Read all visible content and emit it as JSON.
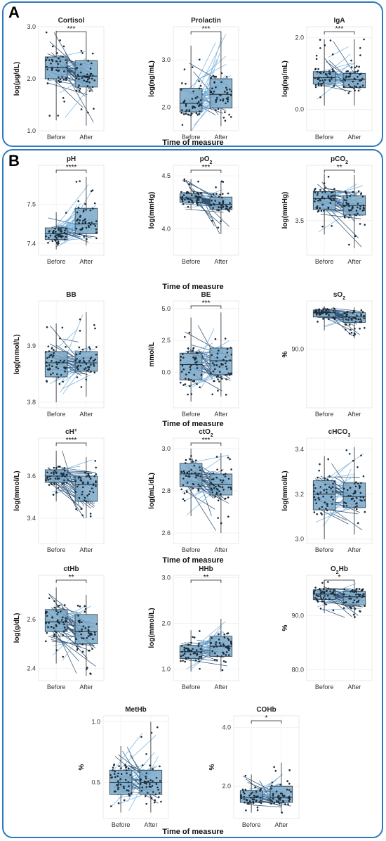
{
  "figure": {
    "panel_a_label": "A",
    "panel_b_label": "B",
    "xlabel": "Time of measure",
    "border_color": "#2f78c0",
    "box_fill": "#7aa8c8",
    "dark_line": "#2b4f70",
    "light_line": "#7ab3de"
  },
  "chart_data": [
    {
      "type": "box",
      "title": "Cortisol",
      "ylabel": "log(µg/dL)",
      "categories": [
        "Before",
        "After"
      ],
      "ylim": [
        1.0,
        3.0
      ],
      "yticks": [
        "1.0",
        "2.0",
        "3.0"
      ],
      "significance": "***",
      "before": {
        "q1": 2.0,
        "median": 2.22,
        "q3": 2.42,
        "min": 1.2,
        "max": 2.92
      },
      "after": {
        "q1": 1.84,
        "median": 2.05,
        "q3": 2.35,
        "min": 1.1,
        "max": 2.85
      }
    },
    {
      "type": "box",
      "title": "Prolactin",
      "ylabel": "log(ng/mL)",
      "categories": [
        "Before",
        "After"
      ],
      "ylim": [
        1.5,
        3.7
      ],
      "yticks": [
        "2.0",
        "3.0"
      ],
      "significance": "***",
      "before": {
        "q1": 1.9,
        "median": 2.08,
        "q3": 2.4,
        "min": 1.5,
        "max": 3.3
      },
      "after": {
        "q1": 1.98,
        "median": 2.27,
        "q3": 2.6,
        "min": 1.6,
        "max": 3.55
      }
    },
    {
      "type": "box",
      "title": "IgA",
      "ylabel": "log(ng/mL)",
      "categories": [
        "Before",
        "After"
      ],
      "ylim": [
        -0.6,
        2.3
      ],
      "yticks": [
        "0.0",
        "2.0"
      ],
      "significance": "***",
      "before": {
        "q1": 0.7,
        "median": 0.88,
        "q3": 1.05,
        "min": 0.1,
        "max": 1.95
      },
      "after": {
        "q1": 0.6,
        "median": 0.83,
        "q3": 1.0,
        "min": 0.1,
        "max": 1.95
      }
    },
    {
      "type": "box",
      "title": "pH",
      "ylabel": "",
      "categories": [
        "Before",
        "After"
      ],
      "ylim": [
        7.37,
        7.6
      ],
      "yticks": [
        "7.4",
        "7.5"
      ],
      "significance": "****",
      "before": {
        "q1": 7.41,
        "median": 7.425,
        "q3": 7.44,
        "min": 7.385,
        "max": 7.48
      },
      "after": {
        "q1": 7.425,
        "median": 7.45,
        "q3": 7.49,
        "min": 7.395,
        "max": 7.57
      }
    },
    {
      "type": "box",
      "title": "pO2",
      "ylabel": "log(mmHg)",
      "categories": [
        "Before",
        "After"
      ],
      "ylim": [
        3.75,
        4.6
      ],
      "yticks": [
        "4.0",
        "4.5"
      ],
      "significance": "***",
      "before": {
        "q1": 4.25,
        "median": 4.29,
        "q3": 4.33,
        "min": 4.18,
        "max": 4.47
      },
      "after": {
        "q1": 4.18,
        "median": 4.23,
        "q3": 4.3,
        "min": 3.95,
        "max": 4.45
      }
    },
    {
      "type": "box",
      "title": "pCO2",
      "ylabel": "log(mmHg)",
      "categories": [
        "Before",
        "After"
      ],
      "ylim": [
        3.25,
        3.9
      ],
      "yticks": [
        "3.5"
      ],
      "significance": "**",
      "before": {
        "q1": 3.58,
        "median": 3.66,
        "q3": 3.71,
        "min": 3.4,
        "max": 3.84
      },
      "after": {
        "q1": 3.54,
        "median": 3.61,
        "q3": 3.68,
        "min": 3.3,
        "max": 3.83
      }
    },
    {
      "type": "box",
      "title": "BB",
      "ylabel": "log(mmol/L)",
      "categories": [
        "Before",
        "After"
      ],
      "ylim": [
        3.79,
        3.98
      ],
      "yticks": [
        "3.8",
        "3.9"
      ],
      "significance": "",
      "before": {
        "q1": 3.845,
        "median": 3.87,
        "q3": 3.89,
        "min": 3.8,
        "max": 3.94
      },
      "after": {
        "q1": 3.855,
        "median": 3.87,
        "q3": 3.89,
        "min": 3.81,
        "max": 3.96
      }
    },
    {
      "type": "box",
      "title": "BE",
      "ylabel": "mmol/L",
      "categories": [
        "Before",
        "After"
      ],
      "ylim": [
        -2.8,
        5.6
      ],
      "yticks": [
        "0.0",
        "2.5",
        "5.0"
      ],
      "significance": "***",
      "before": {
        "q1": -0.6,
        "median": 0.6,
        "q3": 1.5,
        "min": -2.3,
        "max": 4.3
      },
      "after": {
        "q1": -0.2,
        "median": 0.9,
        "q3": 1.9,
        "min": -1.9,
        "max": 4.7
      }
    },
    {
      "type": "box",
      "title": "sO2",
      "ylabel": "%",
      "categories": [
        "Before",
        "After"
      ],
      "ylim": [
        79,
        99
      ],
      "yticks": [
        "90.0"
      ],
      "significance": "",
      "before": {
        "q1": 96.0,
        "median": 96.8,
        "q3": 97.3,
        "min": 93.5,
        "max": 98.0
      },
      "after": {
        "q1": 95.0,
        "median": 96.0,
        "q3": 96.8,
        "min": 92.0,
        "max": 97.8
      }
    },
    {
      "type": "box",
      "title": "cH+",
      "ylabel": "log(mmol/L)",
      "categories": [
        "Before",
        "After"
      ],
      "ylim": [
        3.28,
        3.78
      ],
      "yticks": [
        "3.4",
        "3.6"
      ],
      "significance": "****",
      "before": {
        "q1": 3.57,
        "median": 3.6,
        "q3": 3.63,
        "min": 3.48,
        "max": 3.72
      },
      "after": {
        "q1": 3.48,
        "median": 3.56,
        "q3": 3.6,
        "min": 3.4,
        "max": 3.69
      }
    },
    {
      "type": "box",
      "title": "ctO2",
      "ylabel": "log(mL/dL)",
      "categories": [
        "Before",
        "After"
      ],
      "ylim": [
        2.55,
        3.05
      ],
      "yticks": [
        "2.6",
        "2.8",
        "3.0"
      ],
      "significance": "***",
      "before": {
        "q1": 2.82,
        "median": 2.88,
        "q3": 2.93,
        "min": 2.68,
        "max": 3.0
      },
      "after": {
        "q1": 2.78,
        "median": 2.83,
        "q3": 2.88,
        "min": 2.6,
        "max": 2.98
      }
    },
    {
      "type": "box",
      "title": "cHCO3",
      "ylabel": "log(mmol/L)",
      "categories": [
        "Before",
        "After"
      ],
      "ylim": [
        2.98,
        3.45
      ],
      "yticks": [
        "3.0",
        "3.2",
        "3.4"
      ],
      "significance": "",
      "before": {
        "q1": 3.13,
        "median": 3.2,
        "q3": 3.26,
        "min": 3.0,
        "max": 3.37
      },
      "after": {
        "q1": 3.14,
        "median": 3.19,
        "q3": 3.25,
        "min": 3.02,
        "max": 3.41
      }
    },
    {
      "type": "box",
      "title": "ctHb",
      "ylabel": "log(g/dL)",
      "categories": [
        "Before",
        "After"
      ],
      "ylim": [
        2.35,
        2.78
      ],
      "yticks": [
        "2.4",
        "2.6"
      ],
      "significance": "**",
      "before": {
        "q1": 2.55,
        "median": 2.59,
        "q3": 2.64,
        "min": 2.42,
        "max": 2.73
      },
      "after": {
        "q1": 2.5,
        "median": 2.55,
        "q3": 2.62,
        "min": 2.37,
        "max": 2.7
      }
    },
    {
      "type": "box",
      "title": "HHb",
      "ylabel": "log(mmol/L)",
      "categories": [
        "Before",
        "After"
      ],
      "ylim": [
        0.75,
        3.05
      ],
      "yticks": [
        "1.0",
        "2.0",
        "3.0"
      ],
      "significance": "**",
      "before": {
        "q1": 1.23,
        "median": 1.38,
        "q3": 1.52,
        "min": 0.95,
        "max": 1.85
      },
      "after": {
        "q1": 1.28,
        "median": 1.5,
        "q3": 1.72,
        "min": 0.95,
        "max": 2.1
      }
    },
    {
      "type": "box",
      "title": "O2Hb",
      "ylabel": "%",
      "categories": [
        "Before",
        "After"
      ],
      "ylim": [
        78,
        97.5
      ],
      "yticks": [
        "80.0",
        "90.0"
      ],
      "significance": "*",
      "before": {
        "q1": 93.0,
        "median": 94.0,
        "q3": 94.8,
        "min": 90.5,
        "max": 96.5
      },
      "after": {
        "q1": 92.0,
        "median": 93.5,
        "q3": 94.5,
        "min": 89.5,
        "max": 96.0
      }
    },
    {
      "type": "box",
      "title": "MetHb",
      "ylabel": "%",
      "categories": [
        "Before",
        "After"
      ],
      "ylim": [
        0.2,
        1.05
      ],
      "yticks": [
        "0.5",
        "1.0"
      ],
      "significance": "",
      "before": {
        "q1": 0.4,
        "median": 0.5,
        "q3": 0.6,
        "min": 0.25,
        "max": 0.8
      },
      "after": {
        "q1": 0.4,
        "median": 0.5,
        "q3": 0.6,
        "min": 0.25,
        "max": 1.0
      }
    },
    {
      "type": "box",
      "title": "COHb",
      "ylabel": "%",
      "categories": [
        "Before",
        "After"
      ],
      "ylim": [
        0.9,
        4.4
      ],
      "yticks": [
        "2.0",
        "4.0"
      ],
      "significance": "*",
      "before": {
        "q1": 1.45,
        "median": 1.62,
        "q3": 1.85,
        "min": 1.1,
        "max": 2.4
      },
      "after": {
        "q1": 1.45,
        "median": 1.62,
        "q3": 2.0,
        "min": 1.1,
        "max": 2.8
      }
    }
  ]
}
